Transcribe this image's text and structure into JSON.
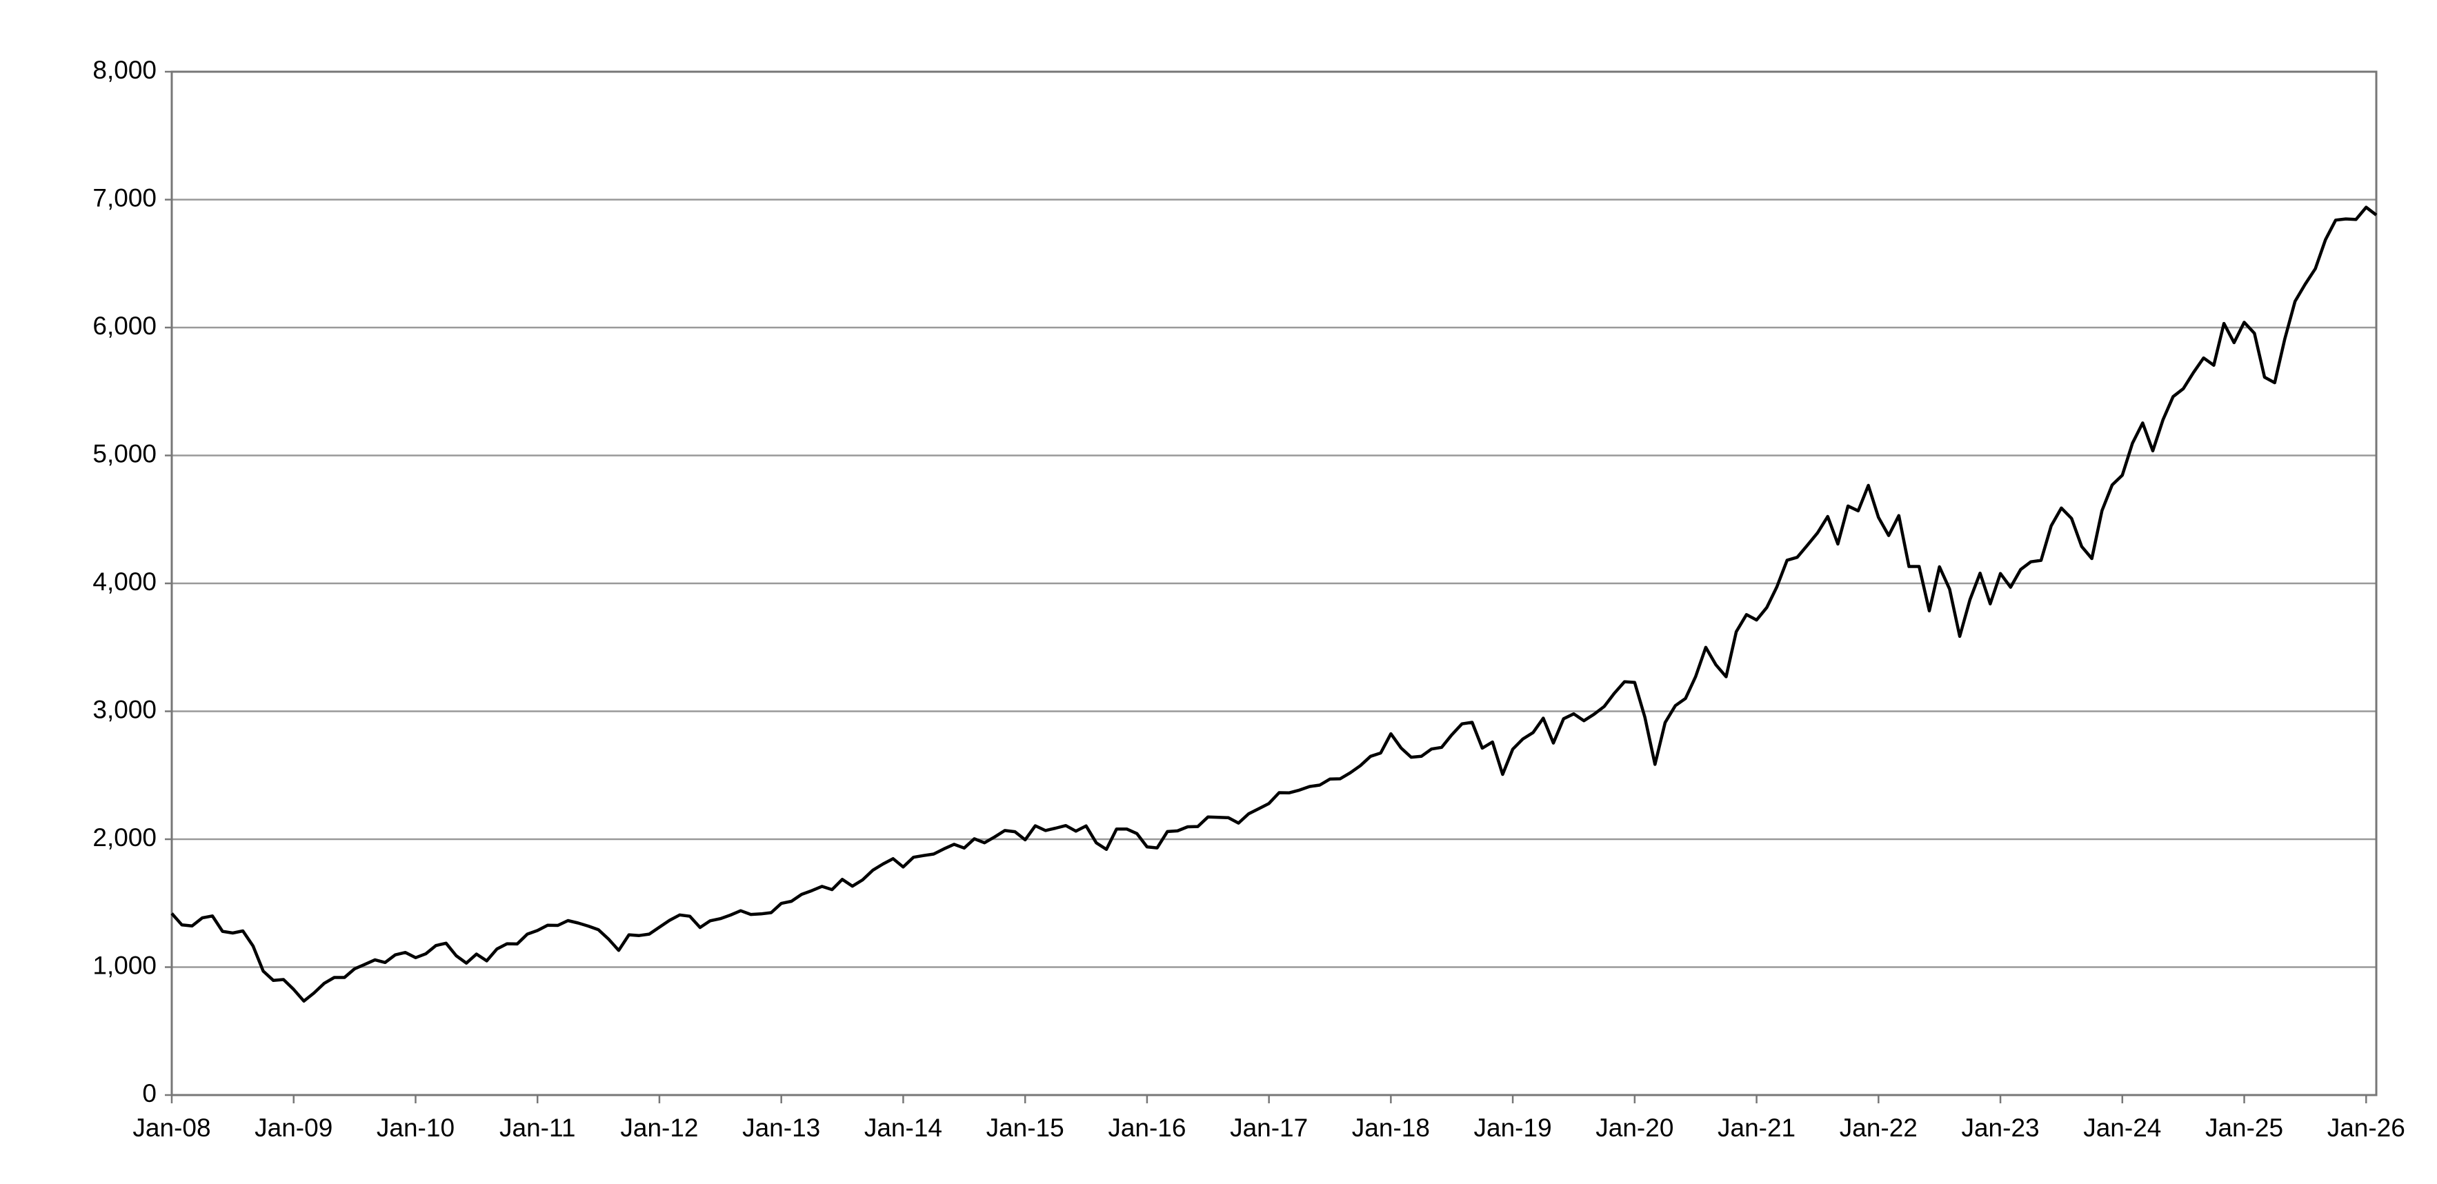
{
  "chart_data": {
    "type": "line",
    "x": [
      "2008-01",
      "2008-02",
      "2008-03",
      "2008-04",
      "2008-05",
      "2008-06",
      "2008-07",
      "2008-08",
      "2008-09",
      "2008-10",
      "2008-11",
      "2008-12",
      "2009-01",
      "2009-02",
      "2009-03",
      "2009-04",
      "2009-05",
      "2009-06",
      "2009-07",
      "2009-08",
      "2009-09",
      "2009-10",
      "2009-11",
      "2009-12",
      "2010-01",
      "2010-02",
      "2010-03",
      "2010-04",
      "2010-05",
      "2010-06",
      "2010-07",
      "2010-08",
      "2010-09",
      "2010-10",
      "2010-11",
      "2010-12",
      "2011-01",
      "2011-02",
      "2011-03",
      "2011-04",
      "2011-05",
      "2011-06",
      "2011-07",
      "2011-08",
      "2011-09",
      "2011-10",
      "2011-11",
      "2011-12",
      "2012-01",
      "2012-02",
      "2012-03",
      "2012-04",
      "2012-05",
      "2012-06",
      "2012-07",
      "2012-08",
      "2012-09",
      "2012-10",
      "2012-11",
      "2012-12",
      "2013-01",
      "2013-02",
      "2013-03",
      "2013-04",
      "2013-05",
      "2013-06",
      "2013-07",
      "2013-08",
      "2013-09",
      "2013-10",
      "2013-11",
      "2013-12",
      "2014-01",
      "2014-02",
      "2014-03",
      "2014-04",
      "2014-05",
      "2014-06",
      "2014-07",
      "2014-08",
      "2014-09",
      "2014-10",
      "2014-11",
      "2014-12",
      "2015-01",
      "2015-02",
      "2015-03",
      "2015-04",
      "2015-05",
      "2015-06",
      "2015-07",
      "2015-08",
      "2015-09",
      "2015-10",
      "2015-11",
      "2015-12",
      "2016-01",
      "2016-02",
      "2016-03",
      "2016-04",
      "2016-05",
      "2016-06",
      "2016-07",
      "2016-08",
      "2016-09",
      "2016-10",
      "2016-11",
      "2016-12",
      "2017-01",
      "2017-02",
      "2017-03",
      "2017-04",
      "2017-05",
      "2017-06",
      "2017-07",
      "2017-08",
      "2017-09",
      "2017-10",
      "2017-11",
      "2017-12",
      "2018-01",
      "2018-02",
      "2018-03",
      "2018-04",
      "2018-05",
      "2018-06",
      "2018-07",
      "2018-08",
      "2018-09",
      "2018-10",
      "2018-11",
      "2018-12",
      "2019-01",
      "2019-02",
      "2019-03",
      "2019-04",
      "2019-05",
      "2019-06",
      "2019-07",
      "2019-08",
      "2019-09",
      "2019-10",
      "2019-11",
      "2019-12",
      "2020-01",
      "2020-02",
      "2020-03",
      "2020-04",
      "2020-05",
      "2020-06",
      "2020-07",
      "2020-08",
      "2020-09",
      "2020-10",
      "2020-11",
      "2020-12",
      "2021-01",
      "2021-02",
      "2021-03",
      "2021-04",
      "2021-05",
      "2021-06",
      "2021-07",
      "2021-08",
      "2021-09",
      "2021-10",
      "2021-11",
      "2021-12",
      "2022-01",
      "2022-02",
      "2022-03",
      "2022-04",
      "2022-05",
      "2022-06",
      "2022-07",
      "2022-08",
      "2022-09",
      "2022-10",
      "2022-11",
      "2022-12",
      "2023-01",
      "2023-02",
      "2023-03",
      "2023-04",
      "2023-05",
      "2023-06",
      "2023-07",
      "2023-08",
      "2023-09",
      "2023-10",
      "2023-11",
      "2023-12",
      "2024-01",
      "2024-02",
      "2024-03",
      "2024-04",
      "2024-05",
      "2024-06",
      "2024-07",
      "2024-08",
      "2024-09",
      "2024-10",
      "2024-11",
      "2024-12",
      "2025-01",
      "2025-02",
      "2025-03",
      "2025-04",
      "2025-05",
      "2025-06",
      "2025-07",
      "2025-08",
      "2025-09",
      "2025-10",
      "2025-11",
      "2025-12",
      "2026-01",
      "2026-02"
    ],
    "values": [
      1420,
      1330,
      1322,
      1385,
      1400,
      1280,
      1267,
      1283,
      1166,
      969,
      896,
      903,
      826,
      735,
      798,
      873,
      919,
      919,
      987,
      1021,
      1057,
      1036,
      1096,
      1115,
      1074,
      1104,
      1169,
      1187,
      1089,
      1031,
      1102,
      1049,
      1141,
      1183,
      1181,
      1258,
      1286,
      1327,
      1326,
      1364,
      1345,
      1321,
      1292,
      1219,
      1131,
      1253,
      1247,
      1258,
      1312,
      1366,
      1408,
      1398,
      1310,
      1362,
      1379,
      1407,
      1441,
      1412,
      1416,
      1426,
      1498,
      1515,
      1569,
      1598,
      1631,
      1606,
      1686,
      1633,
      1682,
      1757,
      1806,
      1848,
      1783,
      1859,
      1872,
      1884,
      1924,
      1960,
      1931,
      2003,
      1972,
      2018,
      2068,
      2059,
      1995,
      2105,
      2068,
      2086,
      2107,
      2063,
      2104,
      1972,
      1920,
      2079,
      2080,
      2044,
      1940,
      1932,
      2060,
      2065,
      2097,
      2099,
      2174,
      2171,
      2168,
      2126,
      2199,
      2239,
      2279,
      2364,
      2363,
      2384,
      2412,
      2423,
      2470,
      2472,
      2519,
      2575,
      2648,
      2674,
      2824,
      2714,
      2641,
      2648,
      2705,
      2718,
      2816,
      2902,
      2914,
      2712,
      2760,
      2507,
      2704,
      2784,
      2834,
      2946,
      2752,
      2942,
      2980,
      2926,
      2977,
      3038,
      3141,
      3231,
      3226,
      2954,
      2585,
      2912,
      3044,
      3100,
      3271,
      3500,
      3363,
      3270,
      3622,
      3756,
      3714,
      3811,
      3973,
      4181,
      4204,
      4298,
      4395,
      4523,
      4308,
      4605,
      4567,
      4766,
      4516,
      4374,
      4530,
      4132,
      4132,
      3785,
      4130,
      3955,
      3586,
      3872,
      4080,
      3840,
      4077,
      3970,
      4109,
      4169,
      4180,
      4450,
      4589,
      4508,
      4288,
      4194,
      4568,
      4770,
      4846,
      5096,
      5254,
      5036,
      5278,
      5460,
      5522,
      5648,
      5762,
      5705,
      6032,
      5882,
      6041,
      5955,
      5612,
      5569,
      5912,
      6205,
      6339,
      6460,
      6688,
      6840,
      6849,
      6845,
      6940,
      6880
    ],
    "color": "#000000",
    "xlim": [
      "2008-01",
      "2026-02"
    ],
    "xticks": [
      {
        "value": "2008-01",
        "label": "Jan-08"
      },
      {
        "value": "2009-01",
        "label": "Jan-09"
      },
      {
        "value": "2010-01",
        "label": "Jan-10"
      },
      {
        "value": "2011-01",
        "label": "Jan-11"
      },
      {
        "value": "2012-01",
        "label": "Jan-12"
      },
      {
        "value": "2013-01",
        "label": "Jan-13"
      },
      {
        "value": "2014-01",
        "label": "Jan-14"
      },
      {
        "value": "2015-01",
        "label": "Jan-15"
      },
      {
        "value": "2016-01",
        "label": "Jan-16"
      },
      {
        "value": "2017-01",
        "label": "Jan-17"
      },
      {
        "value": "2018-01",
        "label": "Jan-18"
      },
      {
        "value": "2019-01",
        "label": "Jan-19"
      },
      {
        "value": "2020-01",
        "label": "Jan-20"
      },
      {
        "value": "2021-01",
        "label": "Jan-21"
      },
      {
        "value": "2022-01",
        "label": "Jan-22"
      },
      {
        "value": "2023-01",
        "label": "Jan-23"
      },
      {
        "value": "2024-01",
        "label": "Jan-24"
      },
      {
        "value": "2025-01",
        "label": "Jan-25"
      },
      {
        "value": "2026-01",
        "label": "Jan-26"
      }
    ],
    "ylim": [
      0,
      8000
    ],
    "yticks": [
      0,
      {
        "value": 1000,
        "label": "1,000"
      },
      {
        "value": 2000,
        "label": "2,000"
      },
      {
        "value": 3000,
        "label": "3,000"
      },
      {
        "value": 4000,
        "label": "4,000"
      },
      {
        "value": 5000,
        "label": "5,000"
      },
      {
        "value": 6000,
        "label": "6,000"
      },
      {
        "value": 7000,
        "label": "7,000"
      },
      {
        "value": 8000,
        "label": "8,000"
      }
    ],
    "grid": true
  }
}
